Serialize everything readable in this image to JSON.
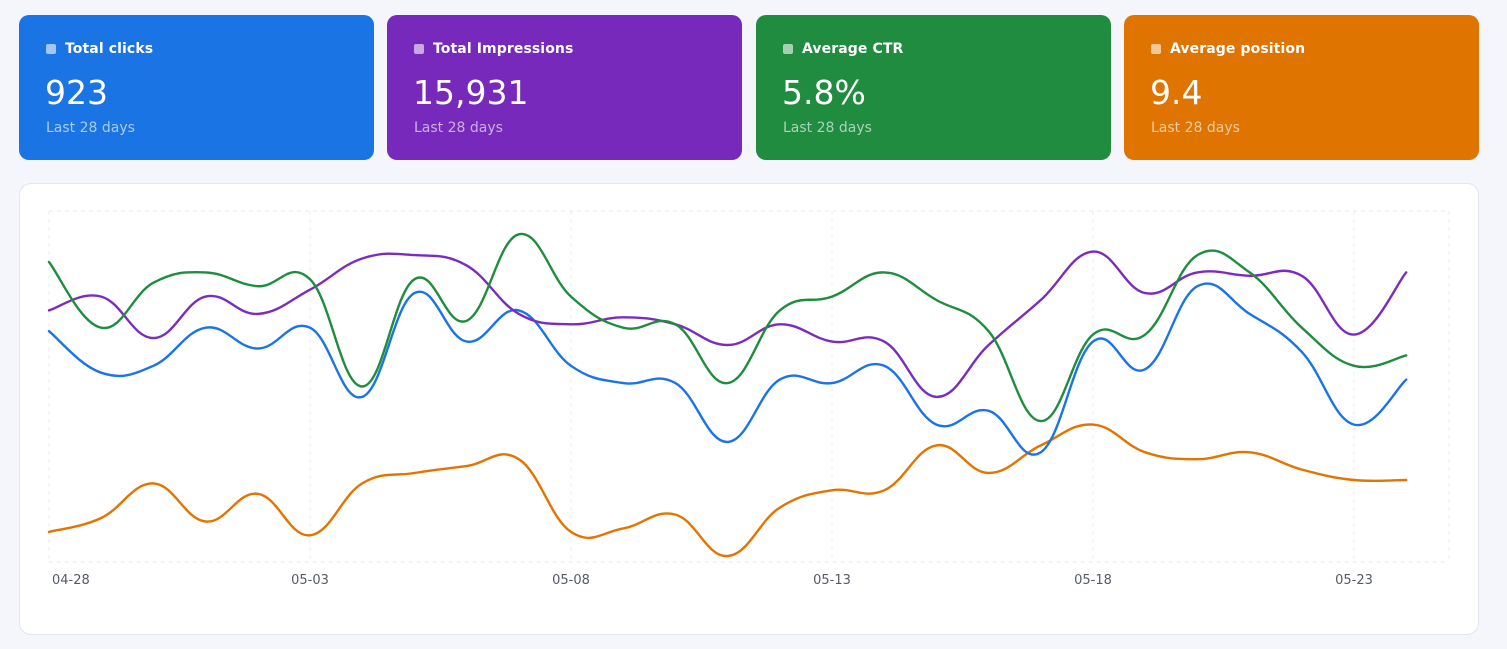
{
  "cards": [
    {
      "label": "Total clicks",
      "value": "923",
      "period": "Last 28 days",
      "color": "#1b74e4"
    },
    {
      "label": "Total Impressions",
      "value": "15,931",
      "period": "Last 28 days",
      "color": "#7629bb"
    },
    {
      "label": "Average CTR",
      "value": "5.8%",
      "period": "Last 28 days",
      "color": "#1f8c3f"
    },
    {
      "label": "Average position",
      "value": "9.4",
      "period": "Last 28 days",
      "color": "#e07400"
    }
  ],
  "chart_data": {
    "type": "line",
    "x": [
      "04-28",
      "04-29",
      "04-30",
      "05-01",
      "05-02",
      "05-03",
      "05-04",
      "05-05",
      "05-06",
      "05-07",
      "05-08",
      "05-09",
      "05-10",
      "05-11",
      "05-12",
      "05-13",
      "05-14",
      "05-15",
      "05-16",
      "05-17",
      "05-18",
      "05-19",
      "05-20",
      "05-21",
      "05-22",
      "05-23",
      "05-24"
    ],
    "tick_labels": [
      "04-28",
      "05-03",
      "05-08",
      "05-13",
      "05-18",
      "05-23"
    ],
    "ylim": [
      0,
      100
    ],
    "grid": true,
    "legend": "none",
    "series": [
      {
        "color": "#1a73e8",
        "values": [
          67,
          55,
          57,
          68,
          62,
          68,
          48,
          78,
          64,
          73,
          57,
          52,
          52,
          35,
          53,
          52,
          57,
          40,
          44,
          32,
          64,
          56,
          80,
          72,
          61,
          40,
          53
        ]
      },
      {
        "color": "#7b2cbf",
        "values": [
          73,
          77,
          65,
          77,
          72,
          79,
          88,
          89,
          86,
          72,
          69,
          71,
          69,
          63,
          69,
          64,
          64,
          48,
          63,
          76,
          90,
          78,
          84,
          83,
          83,
          66,
          84
        ]
      },
      {
        "color": "#1e8e3e",
        "values": [
          87,
          68,
          81,
          84,
          80,
          82,
          51,
          82,
          70,
          95,
          77,
          68,
          69,
          52,
          73,
          77,
          84,
          76,
          67,
          41,
          66,
          66,
          89,
          84,
          68,
          57,
          60
        ]
      },
      {
        "color": "#e37400",
        "values": [
          9,
          13,
          23,
          12,
          20,
          8,
          23,
          26,
          28,
          30,
          9,
          10,
          14,
          2,
          16,
          21,
          21,
          34,
          26,
          34,
          40,
          32,
          30,
          32,
          27,
          24,
          24
        ]
      }
    ]
  }
}
